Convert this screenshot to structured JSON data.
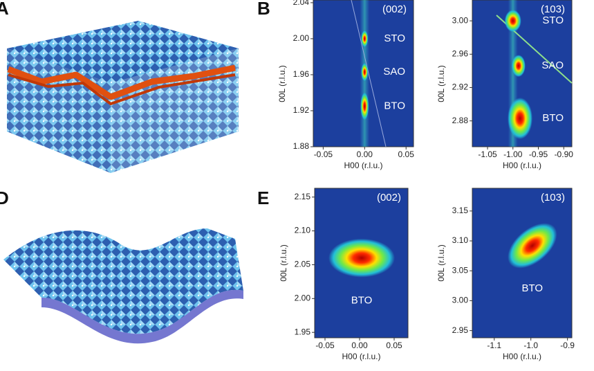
{
  "panels": [
    {
      "label": "A"
    },
    {
      "label": "B"
    },
    {
      "label": "D"
    },
    {
      "label": "E"
    }
  ],
  "chart_data": [
    {
      "type": "heatmap",
      "title": "(002)",
      "xlabel": "H00 (r.l.u.)",
      "ylabel": "00L (r.l.u.)",
      "xlim": [
        -0.062,
        0.059
      ],
      "ylim": [
        1.88,
        2.043
      ],
      "xticks": [
        -0.05,
        {
          "value": 0,
          "label": "0.00"
        },
        0.05
      ],
      "yticks": [
        1.88,
        1.92,
        1.96,
        {
          "value": 2.0,
          "label": "2.00"
        },
        2.04
      ],
      "peaks": [
        {
          "name": "STO",
          "x": 0,
          "y": 2.0
        },
        {
          "name": "SAO",
          "x": 0,
          "y": 1.963
        },
        {
          "name": "BTO",
          "x": 0,
          "y": 1.925
        }
      ]
    },
    {
      "type": "heatmap",
      "title": "(103)",
      "xlabel": "H00 (r.l.u.)",
      "ylabel": "00L (r.l.u.)",
      "xlim": [
        -1.08,
        -0.884
      ],
      "ylim": [
        2.849,
        3.025
      ],
      "xticks": [
        -1.05,
        {
          "value": -1.0,
          "label": "-1.00"
        },
        -0.95,
        {
          "value": -0.9,
          "label": "-0.90"
        }
      ],
      "yticks": [
        2.88,
        2.92,
        2.96,
        {
          "value": 3.0,
          "label": "3.00"
        }
      ],
      "peaks": [
        {
          "name": "STO",
          "x": -1.0,
          "y": 3.0
        },
        {
          "name": "SAO",
          "x": -0.989,
          "y": 2.946
        },
        {
          "name": "BTO",
          "x": -0.986,
          "y": 2.883
        }
      ]
    },
    {
      "type": "heatmap",
      "title": "(002)",
      "xlabel": "H00 (r.l.u.)",
      "ylabel": "00L (r.l.u.)",
      "xlim": [
        -0.065,
        0.07
      ],
      "ylim": [
        1.942,
        2.163
      ],
      "xticks": [
        -0.05,
        {
          "value": 0,
          "label": "0.00"
        },
        0.05
      ],
      "yticks": [
        1.95,
        {
          "value": 2.0,
          "label": "2.00"
        },
        2.05,
        {
          "value": 2.1,
          "label": "2.10"
        },
        2.15
      ],
      "peaks": [
        {
          "name": "BTO",
          "x": 0.003,
          "y": 2.06
        }
      ]
    },
    {
      "type": "heatmap",
      "title": "(103)",
      "xlabel": "H00 (r.l.u.)",
      "ylabel": "00L (r.l.u.)",
      "xlim": [
        -1.16,
        -0.888
      ],
      "ylim": [
        2.938,
        3.188
      ],
      "xticks": [
        -1.1,
        {
          "value": -1.0,
          "label": "-1.0"
        },
        -0.9
      ],
      "yticks": [
        2.95,
        {
          "value": 3.0,
          "label": "3.00"
        },
        3.05,
        {
          "value": 3.1,
          "label": "3.10"
        },
        3.15
      ],
      "peaks": [
        {
          "name": "BTO",
          "x": -0.996,
          "y": 3.092
        }
      ]
    }
  ]
}
